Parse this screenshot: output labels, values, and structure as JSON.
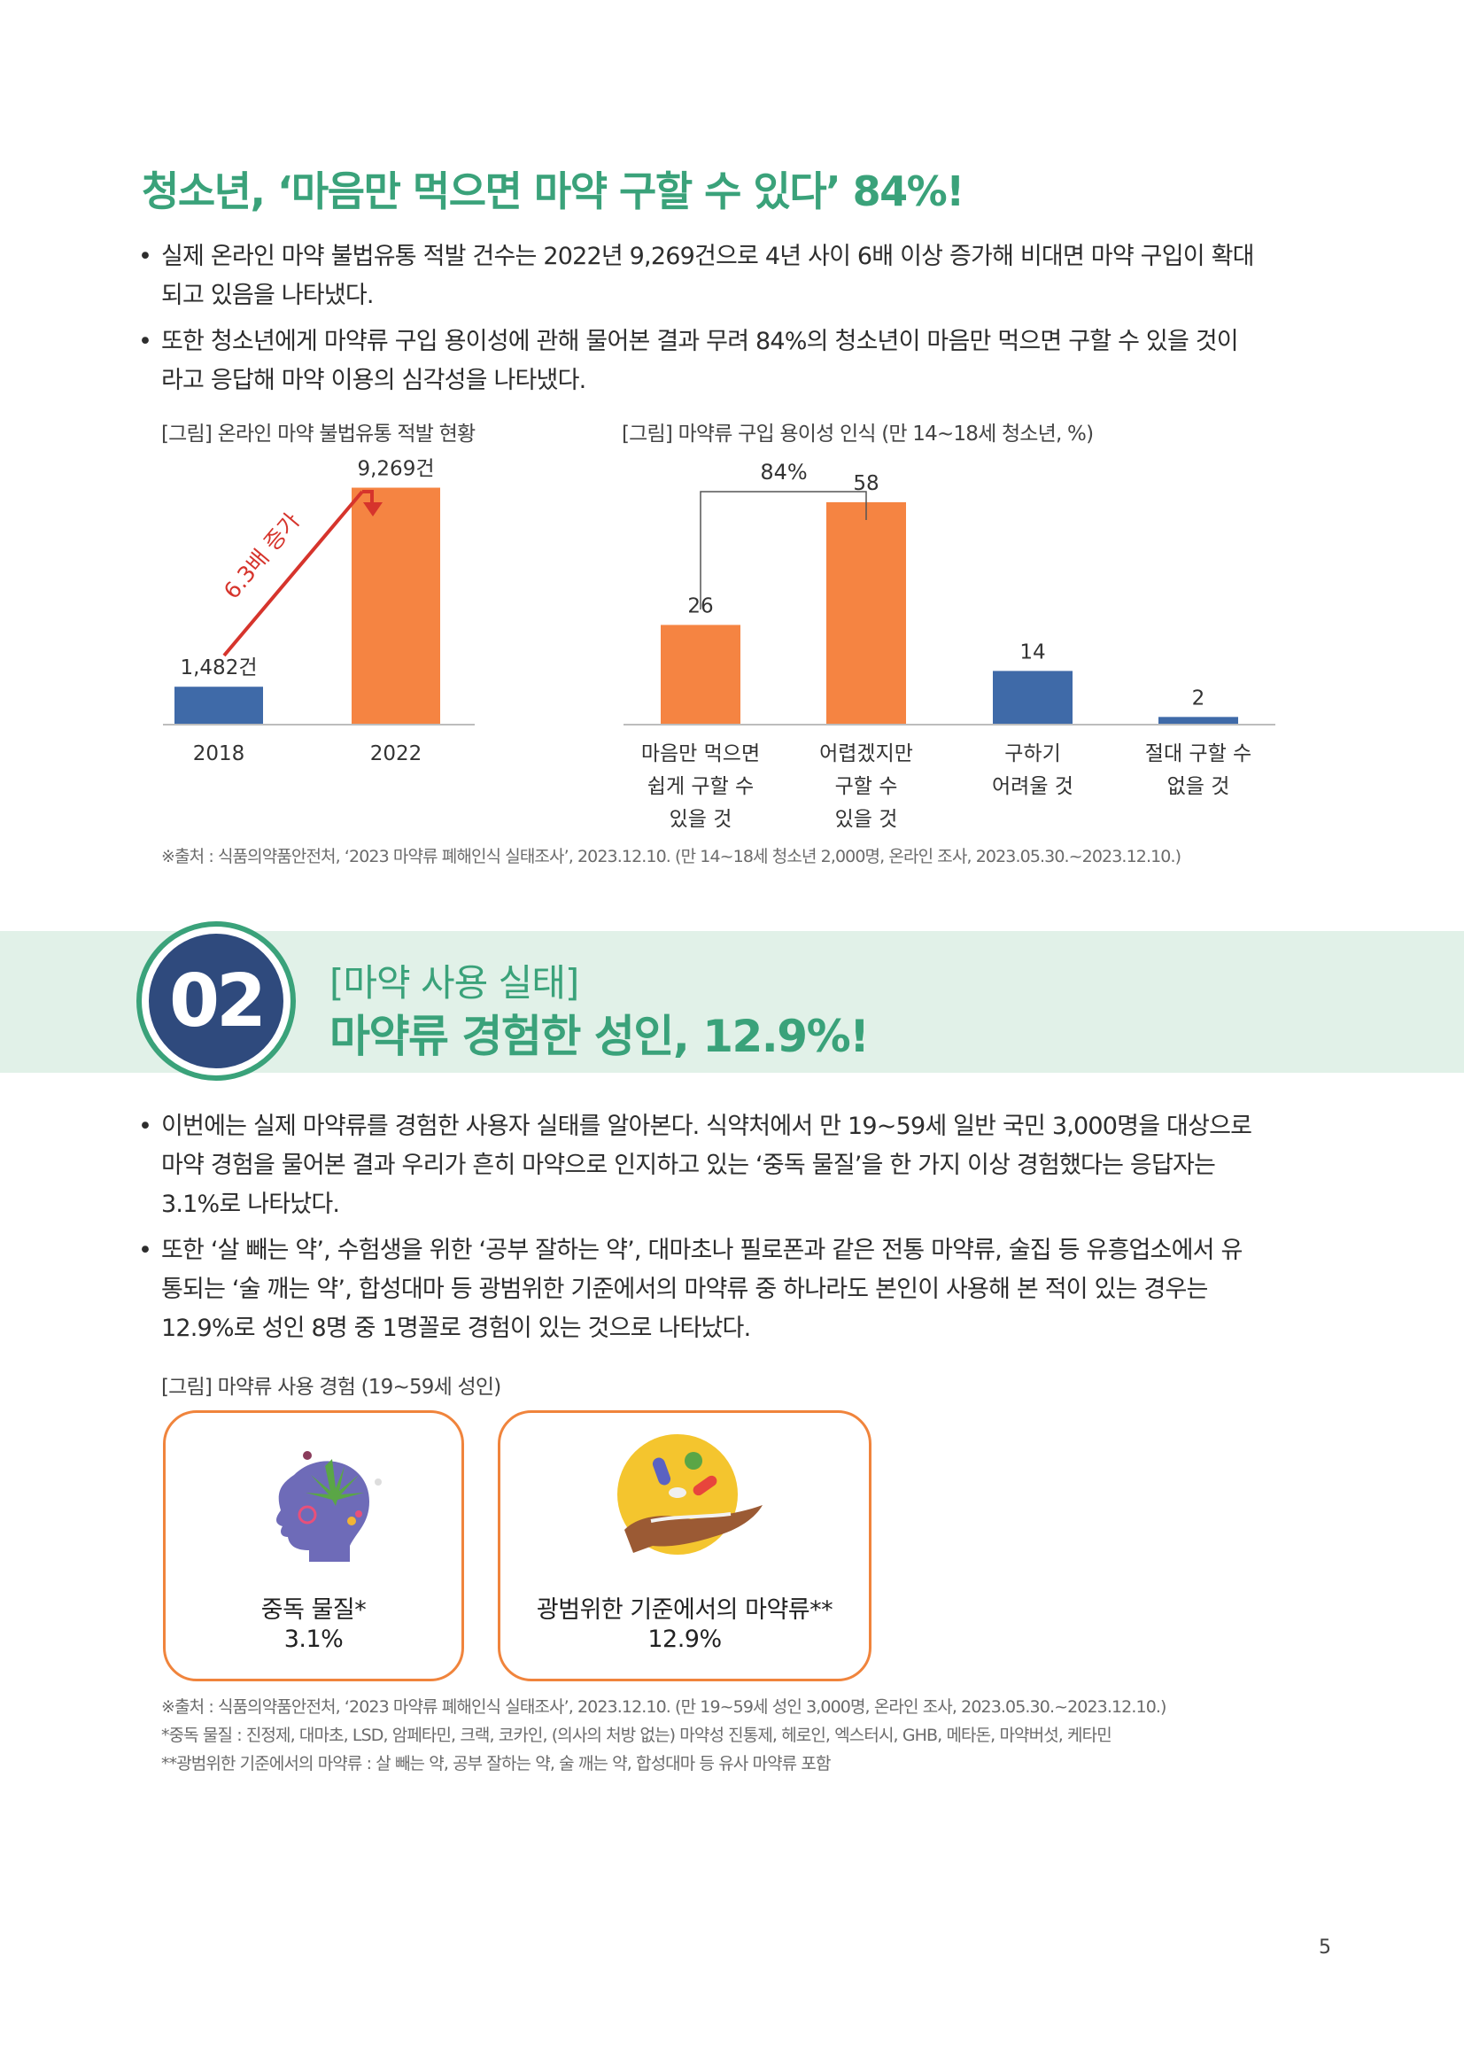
{
  "section1": {
    "title": "청소년, ‘마음만 먹으면 마약 구할 수 있다’ 84%!",
    "bullets": [
      {
        "line1": "실제 온라인 마약 불법유통 적발 건수는 2022년 9,269건으로 4년 사이 6배 이상 증가해 비대면 마약 구입이 확대",
        "line2": "되고 있음을 나타냈다."
      },
      {
        "line1": "또한 청소년에게 마약류 구입 용이성에 관해 물어본 결과 무려 84%의 청소년이 마음만 먹으면 구할 수 있을 것이",
        "line2": "라고 응답해 마약 이용의 심각성을 나타냈다."
      }
    ],
    "source": "※출처 : 식품의약품안전처, ‘2023 마약류 폐해인식 실태조사’, 2023.12.10. (만 14~18세 청소년 2,000명, 온라인 조사, 2023.05.30.~2023.12.10.)"
  },
  "chart_data": [
    {
      "type": "bar",
      "title": "[그림] 온라인 마약 불법유통 적발 현황",
      "categories": [
        "2018",
        "2022"
      ],
      "values": [
        1482,
        9269
      ],
      "data_labels": [
        "1,482건",
        "9,269건"
      ],
      "colors": [
        "#3f6aa8",
        "#f58442"
      ],
      "annotation": "6.3배 증가",
      "ylim": [
        0,
        10500
      ]
    },
    {
      "type": "bar",
      "title": "[그림] 마약류 구입 용이성 인식 (만 14~18세 청소년, %)",
      "categories": [
        [
          "마음만 먹으면",
          "쉽게 구할 수",
          "있을 것"
        ],
        [
          "어렵겠지만",
          "구할 수",
          "있을 것"
        ],
        [
          "구하기",
          "어려울 것"
        ],
        [
          "절대 구할 수",
          "없을 것"
        ]
      ],
      "values": [
        26,
        58,
        14,
        2
      ],
      "colors": [
        "#f58442",
        "#f58442",
        "#3f6aa8",
        "#3f6aa8"
      ],
      "annotation": "84%",
      "ylim": [
        0,
        70
      ]
    }
  ],
  "section2": {
    "number": "02",
    "subtitle": "[마약 사용 실태]",
    "title": "마약류 경험한 성인, 12.9%!",
    "bullets": [
      {
        "line1": "이번에는 실제 마약류를 경험한 사용자 실태를 알아본다. 식약처에서 만 19~59세 일반 국민 3,000명을 대상으로",
        "line2": "마약 경험을 물어본 결과 우리가 흔히 마약으로 인지하고 있는 ‘중독 물질’을 한 가지 이상 경험했다는 응답자는",
        "line3": "3.1%로 나타났다."
      },
      {
        "line1": "또한 ‘살 빼는 약’, 수험생을 위한 ‘공부 잘하는 약’, 대마초나 필로폰과 같은 전통 마약류, 술집 등 유흥업소에서 유",
        "line2": "통되는 ‘술 깨는 약’, 합성대마 등 광범위한 기준에서의 마약류 중 하나라도 본인이 사용해 본 적이 있는 경우는",
        "line3": "12.9%로 성인 8명 중 1명꼴로 경험이 있는 것으로 나타났다."
      }
    ],
    "figure_caption": "[그림] 마약류 사용 경험 (19~59세 성인)",
    "cards": [
      {
        "label": "중독 물질*",
        "value": "3.1%",
        "icon": "head-cannabis-icon"
      },
      {
        "label": "광범위한 기준에서의 마약류**",
        "value": "12.9%",
        "icon": "hand-pills-icon"
      }
    ],
    "notes": [
      "※출처 : 식품의약품안전처, ‘2023 마약류 폐해인식 실태조사’, 2023.12.10. (만 19~59세 성인 3,000명, 온라인 조사, 2023.05.30.~2023.12.10.)",
      "*중독 물질 : 진정제, 대마초, LSD, 암페타민, 크랙, 코카인, (의사의 처방 없는) 마약성 진통제, 헤로인, 엑스터시, GHB, 메타돈, 마약버섯, 케타민",
      "**광범위한 기준에서의 마약류 : 살 빼는 약, 공부 잘하는 약, 술 깨는 약, 합성대마 등 유사 마약류 포함"
    ]
  },
  "page_number": "5"
}
